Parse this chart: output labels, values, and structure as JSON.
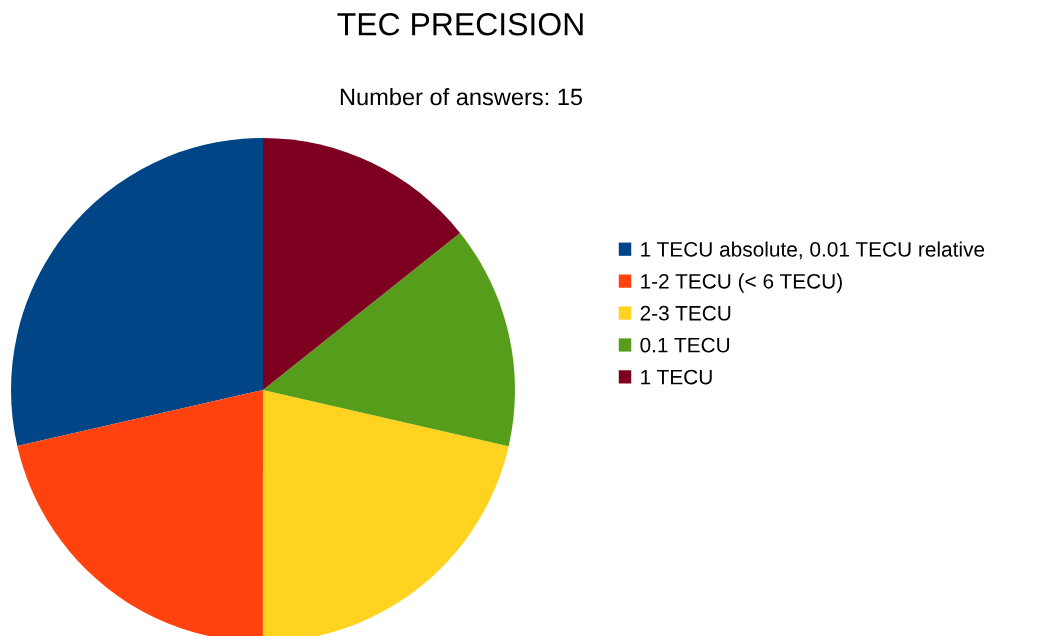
{
  "chart_data": {
    "type": "pie",
    "title": "TEC PRECISION",
    "subtitle": "Number of answers: 15",
    "categories": [
      "1 TECU absolute, 0.01 TECU relative",
      "1-2 TECU (< 6 TECU)",
      "2-3 TECU",
      "0.1 TECU",
      "1 TECU"
    ],
    "values": [
      28.57,
      21.43,
      21.43,
      14.29,
      14.29
    ],
    "colors": [
      "#004586",
      "#ff420e",
      "#ffd320",
      "#579d1c",
      "#7e0021"
    ],
    "legend": "right"
  }
}
